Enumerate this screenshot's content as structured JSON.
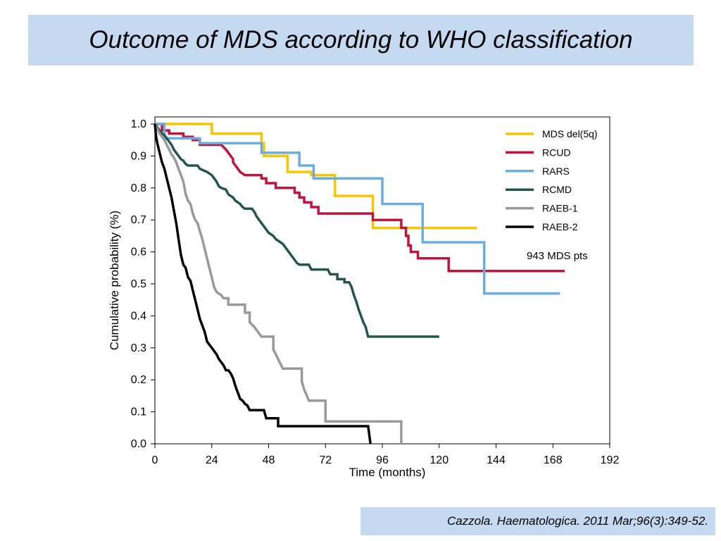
{
  "slide": {
    "title": "Outcome of MDS according to WHO classification",
    "citation": "Cazzola. Haematologica. 2011 Mar;96(3):349-52.",
    "banner_color": "#c5d9f1"
  },
  "chart_data": {
    "type": "line",
    "step": true,
    "xlabel": "Time (months)",
    "ylabel": "Cumulative probability (%)",
    "xlim": [
      0,
      192
    ],
    "ylim": [
      0,
      1.0
    ],
    "xticks": [
      "0",
      "24",
      "48",
      "72",
      "96",
      "120",
      "144",
      "168",
      "192"
    ],
    "yticks": [
      "0.0",
      "0.1",
      "0.2",
      "0.3",
      "0.4",
      "0.5",
      "0.6",
      "0.7",
      "0.8",
      "0.9",
      "1.0"
    ],
    "legend_position": "top-right",
    "annotation": "943 MDS pts",
    "series": [
      {
        "name": "MDS del(5q)",
        "color": "#f9c500",
        "points": [
          [
            0,
            1.0
          ],
          [
            24,
            1.0
          ],
          [
            24,
            0.97
          ],
          [
            45,
            0.97
          ],
          [
            45,
            0.94
          ],
          [
            46,
            0.94
          ],
          [
            46,
            0.9
          ],
          [
            56,
            0.9
          ],
          [
            56,
            0.85
          ],
          [
            66,
            0.85
          ],
          [
            66,
            0.84
          ],
          [
            76,
            0.84
          ],
          [
            76,
            0.775
          ],
          [
            92,
            0.775
          ],
          [
            92,
            0.675
          ],
          [
            136,
            0.675
          ]
        ]
      },
      {
        "name": "RCUD",
        "color": "#c0143c",
        "points": [
          [
            0,
            1.0
          ],
          [
            3,
            1.0
          ],
          [
            3,
            0.98
          ],
          [
            6,
            0.98
          ],
          [
            6,
            0.97
          ],
          [
            12,
            0.97
          ],
          [
            12,
            0.96
          ],
          [
            16,
            0.96
          ],
          [
            16,
            0.95
          ],
          [
            19,
            0.95
          ],
          [
            19,
            0.935
          ],
          [
            28,
            0.935
          ],
          [
            30,
            0.92
          ],
          [
            31,
            0.91
          ],
          [
            32,
            0.9
          ],
          [
            33,
            0.89
          ],
          [
            33,
            0.88
          ],
          [
            34,
            0.87
          ],
          [
            35,
            0.86
          ],
          [
            36,
            0.85
          ],
          [
            37,
            0.845
          ],
          [
            38,
            0.84
          ],
          [
            45,
            0.84
          ],
          [
            45,
            0.83
          ],
          [
            47,
            0.83
          ],
          [
            47,
            0.815
          ],
          [
            51,
            0.815
          ],
          [
            51,
            0.8
          ],
          [
            59,
            0.8
          ],
          [
            59,
            0.785
          ],
          [
            61,
            0.785
          ],
          [
            61,
            0.77
          ],
          [
            63,
            0.77
          ],
          [
            63,
            0.755
          ],
          [
            66,
            0.755
          ],
          [
            66,
            0.74
          ],
          [
            69,
            0.74
          ],
          [
            69,
            0.72
          ],
          [
            92,
            0.72
          ],
          [
            92,
            0.7
          ],
          [
            104,
            0.7
          ],
          [
            104,
            0.675
          ],
          [
            106,
            0.675
          ],
          [
            106,
            0.65
          ],
          [
            107,
            0.65
          ],
          [
            107,
            0.62
          ],
          [
            108,
            0.62
          ],
          [
            108,
            0.6
          ],
          [
            111,
            0.6
          ],
          [
            111,
            0.58
          ],
          [
            124,
            0.58
          ],
          [
            124,
            0.54
          ],
          [
            173,
            0.54
          ]
        ]
      },
      {
        "name": "RARS",
        "color": "#6aaee0",
        "points": [
          [
            0,
            1.0
          ],
          [
            4,
            1.0
          ],
          [
            4,
            0.955
          ],
          [
            19,
            0.955
          ],
          [
            19,
            0.94
          ],
          [
            45,
            0.94
          ],
          [
            45,
            0.91
          ],
          [
            61,
            0.91
          ],
          [
            61,
            0.87
          ],
          [
            67,
            0.87
          ],
          [
            67,
            0.83
          ],
          [
            96,
            0.83
          ],
          [
            96,
            0.75
          ],
          [
            113,
            0.75
          ],
          [
            113,
            0.63
          ],
          [
            139,
            0.63
          ],
          [
            139,
            0.47
          ],
          [
            171,
            0.47
          ]
        ]
      },
      {
        "name": "RCMD",
        "color": "#23574a",
        "points": [
          [
            0,
            1.0
          ],
          [
            1,
            0.99
          ],
          [
            2,
            0.98
          ],
          [
            3,
            0.97
          ],
          [
            4,
            0.965
          ],
          [
            5,
            0.955
          ],
          [
            6,
            0.945
          ],
          [
            7,
            0.935
          ],
          [
            8,
            0.92
          ],
          [
            9,
            0.91
          ],
          [
            10,
            0.9
          ],
          [
            11,
            0.89
          ],
          [
            12,
            0.885
          ],
          [
            13,
            0.875
          ],
          [
            14,
            0.87
          ],
          [
            18,
            0.87
          ],
          [
            19,
            0.86
          ],
          [
            22,
            0.85
          ],
          [
            24,
            0.84
          ],
          [
            25,
            0.83
          ],
          [
            26,
            0.82
          ],
          [
            27,
            0.805
          ],
          [
            28,
            0.8
          ],
          [
            30,
            0.795
          ],
          [
            31,
            0.78
          ],
          [
            33,
            0.77
          ],
          [
            34,
            0.76
          ],
          [
            36,
            0.75
          ],
          [
            37,
            0.74
          ],
          [
            38,
            0.735
          ],
          [
            41,
            0.735
          ],
          [
            42,
            0.725
          ],
          [
            43,
            0.71
          ],
          [
            44,
            0.7
          ],
          [
            45,
            0.69
          ],
          [
            46,
            0.68
          ],
          [
            47,
            0.67
          ],
          [
            48,
            0.66
          ],
          [
            49,
            0.655
          ],
          [
            50,
            0.65
          ],
          [
            51,
            0.64
          ],
          [
            53,
            0.63
          ],
          [
            54,
            0.625
          ],
          [
            55,
            0.615
          ],
          [
            56,
            0.605
          ],
          [
            57,
            0.595
          ],
          [
            58,
            0.585
          ],
          [
            59,
            0.575
          ],
          [
            60,
            0.565
          ],
          [
            61,
            0.56
          ],
          [
            65,
            0.56
          ],
          [
            66,
            0.545
          ],
          [
            73,
            0.545
          ],
          [
            74,
            0.53
          ],
          [
            77,
            0.53
          ],
          [
            77,
            0.515
          ],
          [
            80,
            0.515
          ],
          [
            80,
            0.505
          ],
          [
            82,
            0.505
          ],
          [
            83,
            0.49
          ],
          [
            84,
            0.465
          ],
          [
            85,
            0.445
          ],
          [
            86,
            0.42
          ],
          [
            87,
            0.4
          ],
          [
            88,
            0.38
          ],
          [
            89,
            0.365
          ],
          [
            90,
            0.335
          ],
          [
            120,
            0.335
          ]
        ]
      },
      {
        "name": "RAEB-1",
        "color": "#999999",
        "points": [
          [
            0,
            1.0
          ],
          [
            1,
            0.985
          ],
          [
            2,
            0.97
          ],
          [
            3,
            0.96
          ],
          [
            4,
            0.95
          ],
          [
            5,
            0.935
          ],
          [
            6,
            0.92
          ],
          [
            7,
            0.905
          ],
          [
            8,
            0.895
          ],
          [
            9,
            0.88
          ],
          [
            10,
            0.86
          ],
          [
            11,
            0.84
          ],
          [
            12,
            0.82
          ],
          [
            12.5,
            0.8
          ],
          [
            13,
            0.78
          ],
          [
            14,
            0.76
          ],
          [
            15,
            0.75
          ],
          [
            16,
            0.72
          ],
          [
            17,
            0.7
          ],
          [
            18,
            0.69
          ],
          [
            19,
            0.665
          ],
          [
            20,
            0.64
          ],
          [
            21,
            0.61
          ],
          [
            22,
            0.58
          ],
          [
            23,
            0.55
          ],
          [
            24,
            0.52
          ],
          [
            25,
            0.49
          ],
          [
            26,
            0.475
          ],
          [
            28,
            0.465
          ],
          [
            29,
            0.455
          ],
          [
            31,
            0.455
          ],
          [
            31,
            0.435
          ],
          [
            38,
            0.435
          ],
          [
            38,
            0.41
          ],
          [
            40,
            0.41
          ],
          [
            40,
            0.38
          ],
          [
            42,
            0.365
          ],
          [
            44,
            0.345
          ],
          [
            45,
            0.335
          ],
          [
            50,
            0.335
          ],
          [
            50,
            0.295
          ],
          [
            52,
            0.265
          ],
          [
            54,
            0.235
          ],
          [
            62,
            0.235
          ],
          [
            62,
            0.195
          ],
          [
            63,
            0.17
          ],
          [
            65,
            0.135
          ],
          [
            72,
            0.135
          ],
          [
            72,
            0.07
          ],
          [
            104,
            0.07
          ],
          [
            104,
            0.0
          ]
        ]
      },
      {
        "name": "RAEB-2",
        "color": "#000000",
        "points": [
          [
            0,
            1.0
          ],
          [
            0.5,
            0.96
          ],
          [
            1,
            0.94
          ],
          [
            2,
            0.91
          ],
          [
            3,
            0.88
          ],
          [
            4,
            0.86
          ],
          [
            5,
            0.83
          ],
          [
            6,
            0.8
          ],
          [
            7,
            0.77
          ],
          [
            8,
            0.73
          ],
          [
            9,
            0.69
          ],
          [
            10,
            0.64
          ],
          [
            11,
            0.59
          ],
          [
            12,
            0.56
          ],
          [
            13,
            0.55
          ],
          [
            14,
            0.52
          ],
          [
            15,
            0.51
          ],
          [
            16,
            0.48
          ],
          [
            17,
            0.45
          ],
          [
            18,
            0.42
          ],
          [
            19,
            0.39
          ],
          [
            20,
            0.37
          ],
          [
            21,
            0.35
          ],
          [
            22,
            0.32
          ],
          [
            23,
            0.31
          ],
          [
            24,
            0.3
          ],
          [
            25,
            0.29
          ],
          [
            26,
            0.28
          ],
          [
            27,
            0.265
          ],
          [
            28,
            0.255
          ],
          [
            29,
            0.245
          ],
          [
            30,
            0.23
          ],
          [
            31,
            0.23
          ],
          [
            32,
            0.22
          ],
          [
            33,
            0.205
          ],
          [
            34,
            0.18
          ],
          [
            35,
            0.16
          ],
          [
            36,
            0.14
          ],
          [
            37,
            0.135
          ],
          [
            38,
            0.125
          ],
          [
            39,
            0.12
          ],
          [
            40,
            0.105
          ],
          [
            46,
            0.105
          ],
          [
            47,
            0.08
          ],
          [
            52,
            0.08
          ],
          [
            52,
            0.055
          ],
          [
            90,
            0.055
          ],
          [
            91,
            0.0
          ]
        ]
      }
    ]
  },
  "footer": {
    "citation": "Cazzola. Haematologica. 2011 Mar;96(3):349-52."
  }
}
